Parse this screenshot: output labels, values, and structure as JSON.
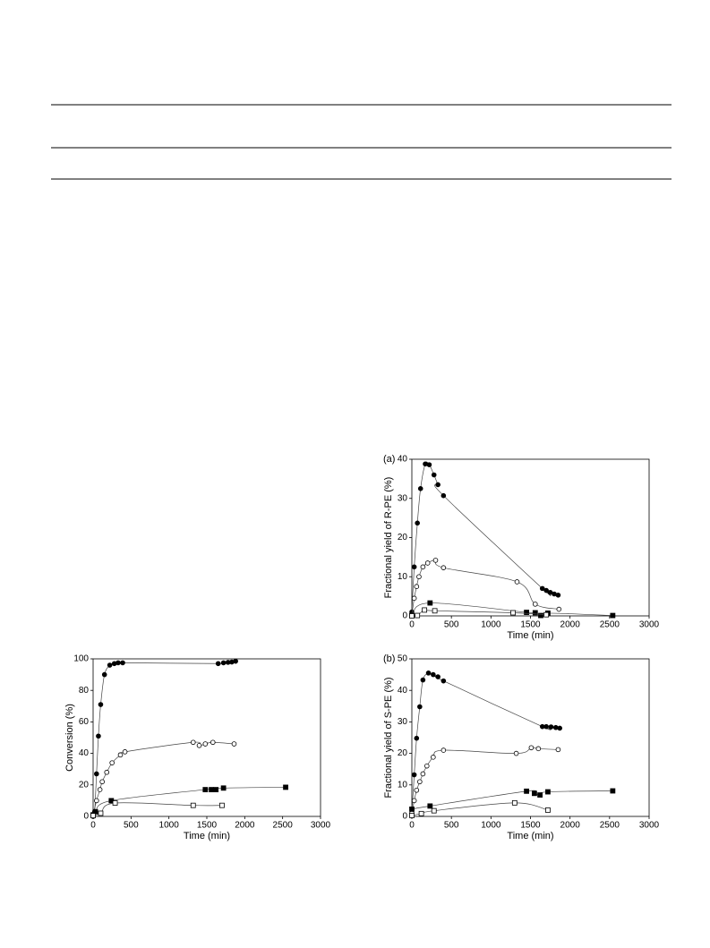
{
  "chart_data": [
    {
      "type": "line",
      "ylabel": "Conversion (%)",
      "xlabel": "Time (min)",
      "xlim": [
        0,
        3000
      ],
      "xticks": [
        0,
        500,
        1000,
        1500,
        2000,
        2500,
        3000
      ],
      "ylim": [
        0,
        100
      ],
      "yticks": [
        0,
        20,
        40,
        60,
        80,
        100
      ],
      "series": [
        {
          "marker": "filled-circle",
          "color": "#000000",
          "x": [
            0,
            20,
            45,
            70,
            100,
            150,
            220,
            280,
            330,
            390,
            1650,
            1720,
            1780,
            1830,
            1880
          ],
          "values": [
            0,
            3,
            27,
            51,
            71,
            90,
            96,
            97,
            97.5,
            97.5,
            97,
            97.5,
            97.8,
            98,
            98.5
          ]
        },
        {
          "marker": "hollow-circle",
          "color": "#000000",
          "x": [
            0,
            45,
            90,
            120,
            180,
            250,
            360,
            420,
            1320,
            1400,
            1480,
            1580,
            1860
          ],
          "values": [
            1,
            10,
            17,
            22,
            28,
            34,
            39,
            41,
            47,
            45,
            46,
            47,
            46
          ]
        },
        {
          "marker": "filled-square",
          "color": "#000000",
          "x": [
            0,
            30,
            240,
            1480,
            1560,
            1620,
            1720,
            2540
          ],
          "values": [
            1,
            3,
            10,
            17,
            17,
            17,
            18,
            18.5
          ]
        },
        {
          "marker": "hollow-square",
          "color": "#000000",
          "x": [
            0,
            100,
            290,
            1320,
            1700
          ],
          "values": [
            0.5,
            2,
            8.5,
            7,
            7
          ]
        }
      ]
    },
    {
      "type": "line",
      "panel": "(a)",
      "ylabel": "Fractional yield of R-PE (%)",
      "xlabel": "Time (min)",
      "xlim": [
        0,
        3000
      ],
      "xticks": [
        0,
        500,
        1000,
        1500,
        2000,
        2500,
        3000
      ],
      "ylim": [
        0,
        40
      ],
      "yticks": [
        0,
        10,
        20,
        30,
        40
      ],
      "series": [
        {
          "marker": "filled-circle",
          "color": "#000000",
          "x": [
            0,
            30,
            70,
            110,
            170,
            220,
            280,
            330,
            400,
            1650,
            1700,
            1750,
            1800,
            1850
          ],
          "values": [
            1,
            12.5,
            23.7,
            32.5,
            38.8,
            38.6,
            36,
            33.5,
            30.7,
            7,
            6.5,
            6,
            5.6,
            5.3
          ]
        },
        {
          "marker": "hollow-circle",
          "color": "#000000",
          "x": [
            0,
            30,
            60,
            90,
            140,
            200,
            300,
            400,
            1330,
            1560,
            1860
          ],
          "values": [
            0.3,
            4.5,
            7.5,
            10,
            12.5,
            13.5,
            14.2,
            12.3,
            8.7,
            3,
            1.7
          ]
        },
        {
          "marker": "filled-square",
          "color": "#000000",
          "x": [
            0,
            230,
            1450,
            1560,
            1630,
            1720,
            2540
          ],
          "values": [
            0.1,
            3.3,
            0.9,
            0.8,
            0.1,
            0.7,
            0.1
          ]
        },
        {
          "marker": "hollow-square",
          "color": "#000000",
          "x": [
            0,
            70,
            160,
            290,
            1280,
            1700
          ],
          "values": [
            0,
            0.1,
            1.5,
            1.3,
            0.8,
            0.3
          ]
        }
      ]
    },
    {
      "type": "line",
      "panel": "(b)",
      "ylabel": "Fractional yield of S-PE (%)",
      "xlabel": "Time (min)",
      "xlim": [
        0,
        3000
      ],
      "xticks": [
        0,
        500,
        1000,
        1500,
        2000,
        2500,
        3000
      ],
      "ylim": [
        0,
        50
      ],
      "yticks": [
        0,
        10,
        20,
        30,
        40,
        50
      ],
      "series": [
        {
          "marker": "filled-circle",
          "color": "#000000",
          "x": [
            0,
            30,
            60,
            100,
            140,
            210,
            270,
            330,
            400,
            1650,
            1700,
            1760,
            1820,
            1870
          ],
          "values": [
            1,
            13.2,
            24.8,
            34.8,
            43.3,
            45.5,
            45,
            44.3,
            43,
            28.5,
            28.5,
            28.4,
            28.2,
            28
          ]
        },
        {
          "marker": "hollow-circle",
          "color": "#000000",
          "x": [
            0,
            30,
            60,
            100,
            140,
            190,
            270,
            400,
            1320,
            1510,
            1600,
            1850
          ],
          "values": [
            1,
            5,
            8.3,
            11,
            13.5,
            16,
            18.8,
            21,
            20,
            21.8,
            21.5,
            21.2
          ]
        },
        {
          "marker": "filled-square",
          "color": "#000000",
          "x": [
            0,
            230,
            1450,
            1550,
            1620,
            1720,
            2540
          ],
          "values": [
            2.3,
            3.3,
            8,
            7.3,
            6.8,
            7.8,
            8.1
          ]
        },
        {
          "marker": "hollow-square",
          "color": "#000000",
          "x": [
            0,
            120,
            280,
            1300,
            1720
          ],
          "values": [
            0.3,
            0.9,
            1.8,
            4.3,
            2
          ]
        }
      ]
    }
  ]
}
